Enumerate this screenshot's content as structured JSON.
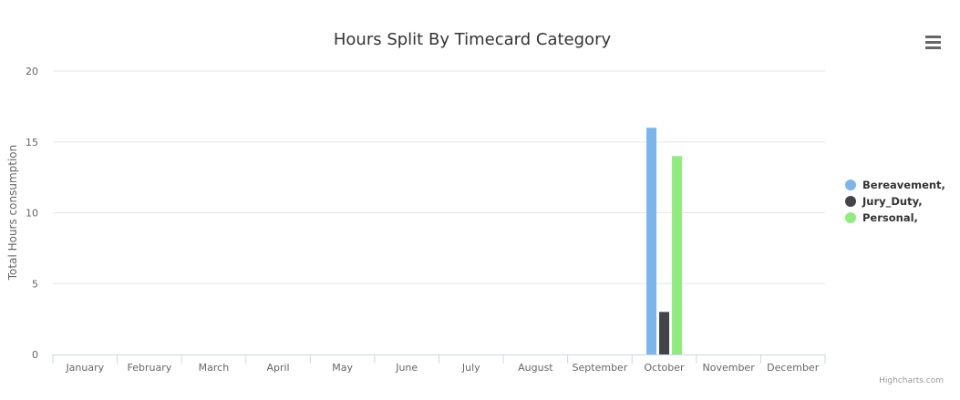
{
  "chart_data": {
    "type": "bar",
    "title": "Hours Split By Timecard Category",
    "ylabel": "Total Hours consumption",
    "xlabel": "",
    "categories": [
      "January",
      "February",
      "March",
      "April",
      "May",
      "June",
      "July",
      "August",
      "September",
      "October",
      "November",
      "December"
    ],
    "ylim": [
      0,
      20
    ],
    "yticks": [
      0,
      5,
      10,
      15,
      20
    ],
    "grid": true,
    "legend_position": "right",
    "series": [
      {
        "name": "Bereavement,",
        "color": "#7cb5ec",
        "values": [
          0,
          0,
          0,
          0,
          0,
          0,
          0,
          0,
          0,
          16,
          0,
          0
        ]
      },
      {
        "name": "Jury_Duty,",
        "color": "#434348",
        "values": [
          0,
          0,
          0,
          0,
          0,
          0,
          0,
          0,
          0,
          3,
          0,
          0
        ]
      },
      {
        "name": "Personal,",
        "color": "#90ed7d",
        "values": [
          0,
          0,
          0,
          0,
          0,
          0,
          0,
          0,
          0,
          14,
          0,
          0
        ]
      }
    ],
    "credits": "Highcharts.com"
  },
  "menu_icon": "hamburger-menu-icon"
}
